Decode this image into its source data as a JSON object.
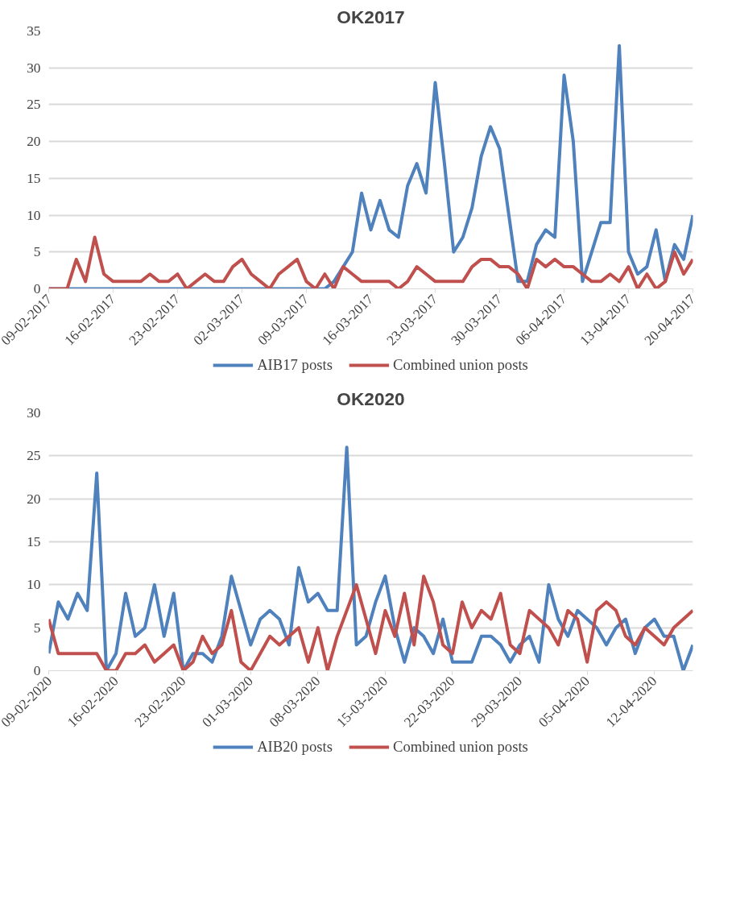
{
  "chart_data": [
    {
      "type": "line",
      "title": "OK2017",
      "grid": "y",
      "legend": "bottom",
      "marker": "none",
      "line_style": "solid",
      "x": [
        "2017-02-09",
        "2017-02-10",
        "2017-02-11",
        "2017-02-12",
        "2017-02-13",
        "2017-02-14",
        "2017-02-15",
        "2017-02-16",
        "2017-02-17",
        "2017-02-18",
        "2017-02-19",
        "2017-02-20",
        "2017-02-21",
        "2017-02-22",
        "2017-02-23",
        "2017-02-24",
        "2017-02-25",
        "2017-02-26",
        "2017-02-27",
        "2017-02-28",
        "2017-03-01",
        "2017-03-02",
        "2017-03-03",
        "2017-03-04",
        "2017-03-05",
        "2017-03-06",
        "2017-03-07",
        "2017-03-08",
        "2017-03-09",
        "2017-03-10",
        "2017-03-11",
        "2017-03-12",
        "2017-03-13",
        "2017-03-14",
        "2017-03-15",
        "2017-03-16",
        "2017-03-17",
        "2017-03-18",
        "2017-03-19",
        "2017-03-20",
        "2017-03-21",
        "2017-03-22",
        "2017-03-23",
        "2017-03-24",
        "2017-03-25",
        "2017-03-26",
        "2017-03-27",
        "2017-03-28",
        "2017-03-29",
        "2017-03-30",
        "2017-03-31",
        "2017-04-01",
        "2017-04-02",
        "2017-04-03",
        "2017-04-04",
        "2017-04-05",
        "2017-04-06",
        "2017-04-07",
        "2017-04-08",
        "2017-04-09",
        "2017-04-10",
        "2017-04-11",
        "2017-04-12",
        "2017-04-13",
        "2017-04-14",
        "2017-04-15",
        "2017-04-16",
        "2017-04-17",
        "2017-04-18",
        "2017-04-19",
        "2017-04-20"
      ],
      "xlim": [
        "2017-02-09",
        "2017-04-20"
      ],
      "xticks": [
        {
          "value": "2017-02-09",
          "label": "09-02-2017"
        },
        {
          "value": "2017-02-16",
          "label": "16-02-2017"
        },
        {
          "value": "2017-02-23",
          "label": "23-02-2017"
        },
        {
          "value": "2017-03-02",
          "label": "02-03-2017"
        },
        {
          "value": "2017-03-09",
          "label": "09-03-2017"
        },
        {
          "value": "2017-03-16",
          "label": "16-03-2017"
        },
        {
          "value": "2017-03-23",
          "label": "23-03-2017"
        },
        {
          "value": "2017-03-30",
          "label": "30-03-2017"
        },
        {
          "value": "2017-04-06",
          "label": "06-04-2017"
        },
        {
          "value": "2017-04-13",
          "label": "13-04-2017"
        },
        {
          "value": "2017-04-20",
          "label": "20-04-2017"
        }
      ],
      "ylim": [
        0,
        35
      ],
      "yticks": [
        0,
        5,
        10,
        15,
        20,
        25,
        30,
        35
      ],
      "series": [
        {
          "name": "AIB17 posts",
          "color": "#4f81bd",
          "values": [
            0,
            0,
            0,
            0,
            0,
            0,
            0,
            0,
            0,
            0,
            0,
            0,
            0,
            0,
            0,
            0,
            0,
            0,
            0,
            0,
            0,
            0,
            0,
            0,
            0,
            0,
            0,
            0,
            0,
            0,
            0,
            1,
            3,
            5,
            13,
            8,
            12,
            8,
            7,
            14,
            17,
            13,
            28,
            17,
            5,
            7,
            11,
            18,
            22,
            19,
            10,
            1,
            1,
            6,
            8,
            7,
            29,
            20,
            1,
            5,
            9,
            9,
            33,
            5,
            2,
            3,
            8,
            1,
            6,
            4,
            10
          ]
        },
        {
          "name": "Combined union posts",
          "color": "#c0504d",
          "values": [
            0,
            0,
            0,
            4,
            1,
            7,
            2,
            1,
            1,
            1,
            1,
            2,
            1,
            1,
            2,
            0,
            1,
            2,
            1,
            1,
            3,
            4,
            2,
            1,
            0,
            2,
            3,
            4,
            1,
            0,
            2,
            0,
            3,
            2,
            1,
            1,
            1,
            1,
            0,
            1,
            3,
            2,
            1,
            1,
            1,
            1,
            3,
            4,
            4,
            3,
            3,
            2,
            0,
            4,
            3,
            4,
            3,
            3,
            2,
            1,
            1,
            2,
            1,
            3,
            0,
            2,
            0,
            1,
            5,
            2,
            4
          ]
        }
      ]
    },
    {
      "type": "line",
      "title": "OK2020",
      "grid": "y",
      "legend": "bottom",
      "marker": "none",
      "line_style": "solid",
      "x": [
        "2020-02-09",
        "2020-02-10",
        "2020-02-11",
        "2020-02-12",
        "2020-02-13",
        "2020-02-14",
        "2020-02-15",
        "2020-02-16",
        "2020-02-17",
        "2020-02-18",
        "2020-02-19",
        "2020-02-20",
        "2020-02-21",
        "2020-02-22",
        "2020-02-23",
        "2020-02-24",
        "2020-02-25",
        "2020-02-26",
        "2020-02-27",
        "2020-02-28",
        "2020-02-29",
        "2020-03-01",
        "2020-03-02",
        "2020-03-03",
        "2020-03-04",
        "2020-03-05",
        "2020-03-06",
        "2020-03-07",
        "2020-03-08",
        "2020-03-09",
        "2020-03-10",
        "2020-03-11",
        "2020-03-12",
        "2020-03-13",
        "2020-03-14",
        "2020-03-15",
        "2020-03-16",
        "2020-03-17",
        "2020-03-18",
        "2020-03-19",
        "2020-03-20",
        "2020-03-21",
        "2020-03-22",
        "2020-03-23",
        "2020-03-24",
        "2020-03-25",
        "2020-03-26",
        "2020-03-27",
        "2020-03-28",
        "2020-03-29",
        "2020-03-30",
        "2020-03-31",
        "2020-04-01",
        "2020-04-02",
        "2020-04-03",
        "2020-04-04",
        "2020-04-05",
        "2020-04-06",
        "2020-04-07",
        "2020-04-08",
        "2020-04-09",
        "2020-04-10",
        "2020-04-11",
        "2020-04-12",
        "2020-04-13",
        "2020-04-14",
        "2020-04-15",
        "2020-04-16"
      ],
      "xlim": [
        "2020-02-09",
        "2020-04-16"
      ],
      "xticks": [
        {
          "value": "2020-02-09",
          "label": "09-02-2020"
        },
        {
          "value": "2020-02-16",
          "label": "16-02-2020"
        },
        {
          "value": "2020-02-23",
          "label": "23-02-2020"
        },
        {
          "value": "2020-03-01",
          "label": "01-03-2020"
        },
        {
          "value": "2020-03-08",
          "label": "08-03-2020"
        },
        {
          "value": "2020-03-15",
          "label": "15-03-2020"
        },
        {
          "value": "2020-03-22",
          "label": "22-03-2020"
        },
        {
          "value": "2020-03-29",
          "label": "29-03-2020"
        },
        {
          "value": "2020-04-05",
          "label": "05-04-2020"
        },
        {
          "value": "2020-04-12",
          "label": "12-04-2020"
        }
      ],
      "ylim": [
        0,
        30
      ],
      "yticks": [
        0,
        5,
        10,
        15,
        20,
        25,
        30
      ],
      "series": [
        {
          "name": "AIB20 posts",
          "color": "#4f81bd",
          "values": [
            2,
            8,
            6,
            9,
            7,
            23,
            0,
            2,
            9,
            4,
            5,
            10,
            4,
            9,
            0,
            2,
            2,
            1,
            4,
            11,
            7,
            3,
            6,
            7,
            6,
            3,
            12,
            8,
            9,
            7,
            7,
            26,
            3,
            4,
            8,
            11,
            5,
            1,
            5,
            4,
            2,
            6,
            1,
            1,
            1,
            4,
            4,
            3,
            1,
            3,
            4,
            1,
            10,
            6,
            4,
            7,
            6,
            5,
            3,
            5,
            6,
            2,
            5,
            6,
            4,
            4,
            0,
            3
          ]
        },
        {
          "name": "Combined union posts",
          "color": "#c0504d",
          "values": [
            6,
            2,
            2,
            2,
            2,
            2,
            0,
            0,
            2,
            2,
            3,
            1,
            2,
            3,
            0,
            1,
            4,
            2,
            3,
            7,
            1,
            0,
            2,
            4,
            3,
            4,
            5,
            1,
            5,
            0,
            4,
            7,
            10,
            6,
            2,
            7,
            4,
            9,
            3,
            11,
            8,
            3,
            2,
            8,
            5,
            7,
            6,
            9,
            3,
            2,
            7,
            6,
            5,
            3,
            7,
            6,
            1,
            7,
            8,
            7,
            4,
            3,
            5,
            4,
            3,
            5,
            6,
            7
          ]
        }
      ]
    }
  ]
}
